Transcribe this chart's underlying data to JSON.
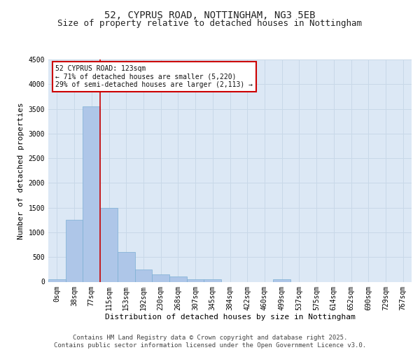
{
  "title_line1": "52, CYPRUS ROAD, NOTTINGHAM, NG3 5EB",
  "title_line2": "Size of property relative to detached houses in Nottingham",
  "xlabel": "Distribution of detached houses by size in Nottingham",
  "ylabel": "Number of detached properties",
  "bin_labels": [
    "0sqm",
    "38sqm",
    "77sqm",
    "115sqm",
    "153sqm",
    "192sqm",
    "230sqm",
    "268sqm",
    "307sqm",
    "345sqm",
    "384sqm",
    "422sqm",
    "460sqm",
    "499sqm",
    "537sqm",
    "575sqm",
    "614sqm",
    "652sqm",
    "690sqm",
    "729sqm",
    "767sqm"
  ],
  "bar_heights": [
    50,
    1250,
    3550,
    1500,
    600,
    250,
    150,
    100,
    50,
    50,
    0,
    0,
    0,
    50,
    0,
    0,
    0,
    0,
    0,
    0,
    0
  ],
  "bar_color": "#aec6e8",
  "bar_edge_color": "#7bafd4",
  "grid_color": "#c8d8e8",
  "background_color": "#dce8f5",
  "vline_color": "#cc0000",
  "annotation_text": "52 CYPRUS ROAD: 123sqm\n← 71% of detached houses are smaller (5,220)\n29% of semi-detached houses are larger (2,113) →",
  "annotation_box_color": "#cc0000",
  "ylim": [
    0,
    4500
  ],
  "yticks": [
    0,
    500,
    1000,
    1500,
    2000,
    2500,
    3000,
    3500,
    4000,
    4500
  ],
  "footer_line1": "Contains HM Land Registry data © Crown copyright and database right 2025.",
  "footer_line2": "Contains public sector information licensed under the Open Government Licence v3.0.",
  "title_fontsize": 10,
  "subtitle_fontsize": 9,
  "axis_label_fontsize": 8,
  "tick_fontsize": 7,
  "annotation_fontsize": 7,
  "footer_fontsize": 6.5
}
